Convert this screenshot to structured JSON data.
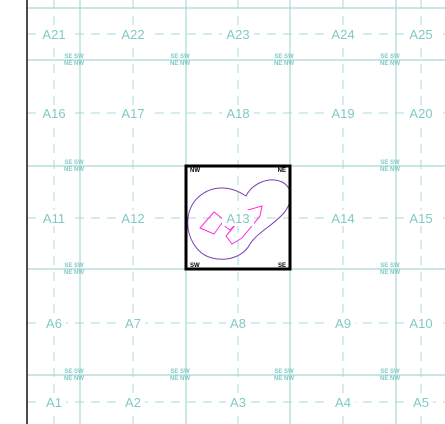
{
  "colors": {
    "grid": "#a8d8d4",
    "label": "#7fcac4",
    "frame": "#111111",
    "highlight": "#000000",
    "contour_outer": "#7a3fb8",
    "contour_inner": "#ff2fe0",
    "quad_label": "#7fcac4"
  },
  "grid": {
    "rows": [
      [
        "A21",
        "A22",
        "A23",
        "A24",
        "A25"
      ],
      [
        "A16",
        "A17",
        "A18",
        "A19",
        "A20"
      ],
      [
        "A11",
        "A12",
        "A13",
        "A14",
        "A15"
      ],
      [
        "A6",
        "A7",
        "A8",
        "A9",
        "A10"
      ],
      [
        "A1",
        "A2",
        "A3",
        "A4",
        "A5"
      ]
    ],
    "selected_cell": "A13"
  },
  "quadrant_marks": {
    "top": "SE SW",
    "bottom": "NE NW",
    "selected_nw": "NW",
    "selected_ne": "NE",
    "selected_sw": "SW",
    "selected_se": "SE"
  }
}
